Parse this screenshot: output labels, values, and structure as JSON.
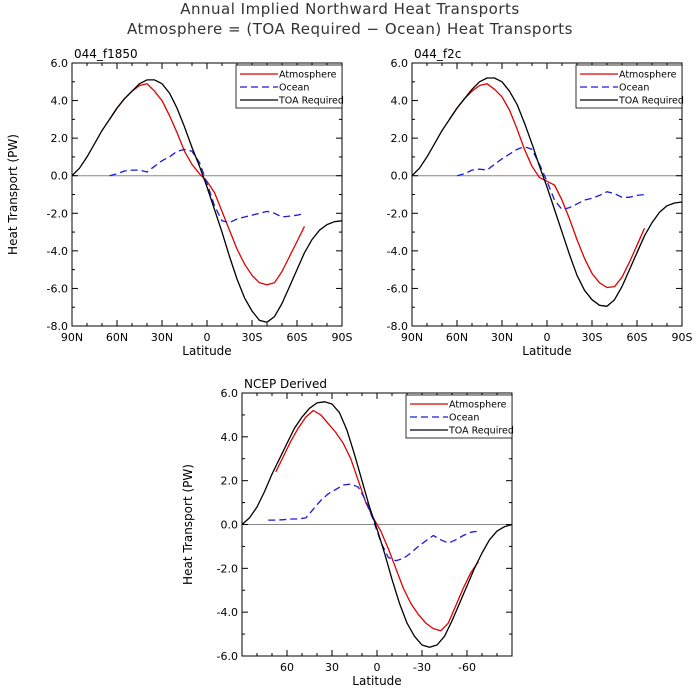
{
  "title": "Annual Implied Northward Heat Transports",
  "subtitle": "Atmosphere = (TOA Required − Ocean) Heat Transports",
  "chart_data": [
    {
      "type": "line",
      "title": "044_f1850",
      "xlabel": "Latitude",
      "ylabel": "Heat Transport (PW)",
      "xlim": [
        90,
        -90
      ],
      "ylim": [
        -8,
        6
      ],
      "xticks": [
        90,
        60,
        30,
        0,
        -30,
        -60,
        -90
      ],
      "xticklabels": [
        "90N",
        "60N",
        "30N",
        "0",
        "30S",
        "60S",
        "90S"
      ],
      "yticks": [
        -8,
        -6,
        -4,
        -2,
        0,
        2,
        4,
        6
      ],
      "yticklabels": [
        "-8.0",
        "-6.0",
        "-4.0",
        "-2.0",
        "0.0",
        "2.0",
        "4.0",
        "6.0"
      ],
      "legend_position": "top-right",
      "series": [
        {
          "name": "Atmosphere",
          "color": "#e00000",
          "dash": "solid",
          "x": [
            65,
            60,
            55,
            50,
            45,
            40,
            35,
            30,
            25,
            20,
            15,
            10,
            5,
            0,
            -5,
            -10,
            -15,
            -20,
            -25,
            -30,
            -35,
            -40,
            -45,
            -50,
            -55,
            -60,
            -65
          ],
          "y": [
            3.0,
            3.6,
            4.1,
            4.5,
            4.8,
            4.9,
            4.5,
            4.0,
            3.2,
            2.3,
            1.3,
            0.6,
            0.1,
            -0.3,
            -0.9,
            -1.9,
            -2.9,
            -3.9,
            -4.7,
            -5.3,
            -5.7,
            -5.8,
            -5.7,
            -5.1,
            -4.3,
            -3.5,
            -2.7
          ]
        },
        {
          "name": "Ocean",
          "color": "#1a1adc",
          "dash": "dashed",
          "x": [
            65,
            60,
            55,
            50,
            45,
            40,
            35,
            30,
            25,
            20,
            15,
            10,
            5,
            0,
            -5,
            -10,
            -15,
            -20,
            -25,
            -30,
            -35,
            -40,
            -45,
            -50,
            -55,
            -60,
            -65
          ],
          "y": [
            0.0,
            0.1,
            0.25,
            0.3,
            0.3,
            0.2,
            0.5,
            0.8,
            1.0,
            1.3,
            1.4,
            1.3,
            0.7,
            -0.4,
            -1.6,
            -2.4,
            -2.5,
            -2.3,
            -2.2,
            -2.1,
            -2.0,
            -1.9,
            -2.0,
            -2.2,
            -2.15,
            -2.1,
            -2.0
          ]
        },
        {
          "name": "TOA Required",
          "color": "#000000",
          "dash": "solid",
          "x": [
            90,
            85,
            80,
            75,
            70,
            65,
            60,
            55,
            50,
            45,
            40,
            35,
            30,
            25,
            20,
            15,
            10,
            5,
            0,
            -5,
            -10,
            -15,
            -20,
            -25,
            -30,
            -35,
            -40,
            -45,
            -50,
            -55,
            -60,
            -65,
            -70,
            -75,
            -80,
            -85,
            -90
          ],
          "y": [
            0.0,
            0.4,
            1.0,
            1.7,
            2.4,
            3.0,
            3.6,
            4.1,
            4.5,
            4.9,
            5.1,
            5.1,
            4.9,
            4.4,
            3.6,
            2.6,
            1.5,
            0.5,
            -0.6,
            -1.8,
            -3.0,
            -4.3,
            -5.5,
            -6.5,
            -7.2,
            -7.7,
            -7.8,
            -7.5,
            -6.8,
            -5.9,
            -5.0,
            -4.1,
            -3.4,
            -2.9,
            -2.6,
            -2.45,
            -2.4
          ]
        }
      ]
    },
    {
      "type": "line",
      "title": "044_f2c",
      "xlabel": "Latitude",
      "ylabel": "",
      "xlim": [
        90,
        -90
      ],
      "ylim": [
        -8,
        6
      ],
      "xticks": [
        90,
        60,
        30,
        0,
        -30,
        -60,
        -90
      ],
      "xticklabels": [
        "90N",
        "60N",
        "30N",
        "0",
        "30S",
        "60S",
        "90S"
      ],
      "yticks": [
        -8,
        -6,
        -4,
        -2,
        0,
        2,
        4,
        6
      ],
      "yticklabels": [
        "-8.0",
        "-6.0",
        "-4.0",
        "-2.0",
        "0.0",
        "2.0",
        "4.0",
        "6.0"
      ],
      "legend_position": "top-right",
      "series": [
        {
          "name": "Atmosphere",
          "color": "#e00000",
          "dash": "solid",
          "x": [
            65,
            60,
            55,
            50,
            45,
            40,
            35,
            30,
            25,
            20,
            15,
            10,
            5,
            0,
            -5,
            -10,
            -15,
            -20,
            -25,
            -30,
            -35,
            -40,
            -45,
            -50,
            -55,
            -60,
            -65
          ],
          "y": [
            3.0,
            3.6,
            4.1,
            4.5,
            4.8,
            4.9,
            4.6,
            4.2,
            3.5,
            2.5,
            1.4,
            0.5,
            -0.1,
            -0.3,
            -0.5,
            -1.3,
            -2.3,
            -3.4,
            -4.4,
            -5.2,
            -5.7,
            -5.95,
            -5.9,
            -5.4,
            -4.6,
            -3.7,
            -2.8
          ]
        },
        {
          "name": "Ocean",
          "color": "#1a1adc",
          "dash": "dashed",
          "x": [
            60,
            55,
            50,
            45,
            40,
            35,
            30,
            25,
            20,
            15,
            10,
            5,
            0,
            -5,
            -10,
            -15,
            -20,
            -25,
            -30,
            -35,
            -40,
            -45,
            -50,
            -55,
            -60,
            -65
          ],
          "y": [
            0.0,
            0.1,
            0.3,
            0.35,
            0.3,
            0.6,
            0.9,
            1.15,
            1.4,
            1.55,
            1.4,
            0.6,
            -0.3,
            -1.3,
            -1.8,
            -1.7,
            -1.5,
            -1.3,
            -1.2,
            -1.05,
            -0.85,
            -0.95,
            -1.15,
            -1.15,
            -1.05,
            -1.0
          ]
        },
        {
          "name": "TOA Required",
          "color": "#000000",
          "dash": "solid",
          "x": [
            90,
            85,
            80,
            75,
            70,
            65,
            60,
            55,
            50,
            45,
            40,
            35,
            30,
            25,
            20,
            15,
            10,
            5,
            0,
            -5,
            -10,
            -15,
            -20,
            -25,
            -30,
            -35,
            -40,
            -45,
            -50,
            -55,
            -60,
            -65,
            -70,
            -75,
            -80,
            -85,
            -90
          ],
          "y": [
            0.0,
            0.4,
            1.0,
            1.7,
            2.4,
            3.0,
            3.6,
            4.1,
            4.6,
            5.0,
            5.2,
            5.2,
            5.0,
            4.5,
            3.8,
            2.8,
            1.7,
            0.5,
            -0.6,
            -1.8,
            -3.0,
            -4.2,
            -5.3,
            -6.1,
            -6.6,
            -6.9,
            -6.95,
            -6.6,
            -5.9,
            -5.0,
            -4.1,
            -3.2,
            -2.5,
            -1.95,
            -1.6,
            -1.45,
            -1.4
          ]
        }
      ]
    },
    {
      "type": "line",
      "title": "NCEP Derived",
      "xlabel": "Latitude",
      "ylabel": "Heat Transport (PW)",
      "xlim": [
        90,
        -90
      ],
      "ylim": [
        -6,
        6
      ],
      "xticks": [
        60,
        30,
        0,
        -30,
        -60
      ],
      "xticklabels": [
        "60",
        "30",
        "0",
        "-30",
        "-60"
      ],
      "yticks": [
        -6,
        -4,
        -2,
        0,
        2,
        4,
        6
      ],
      "yticklabels": [
        "-6.0",
        "-4.0",
        "-2.0",
        "0.0",
        "2.0",
        "4.0",
        "6.0"
      ],
      "legend_position": "top-right",
      "series": [
        {
          "name": "Atmosphere",
          "color": "#e00000",
          "dash": "solid",
          "x": [
            67.5,
            62.5,
            57.5,
            52.5,
            47.5,
            42.5,
            37.5,
            32.5,
            27.5,
            22.5,
            17.5,
            12.5,
            7.5,
            2.5,
            -2.5,
            -7.5,
            -12.5,
            -17.5,
            -22.5,
            -27.5,
            -32.5,
            -37.5,
            -42.5,
            -47.5,
            -52.5,
            -57.5,
            -62.5,
            -67.5
          ],
          "y": [
            2.4,
            3.1,
            3.8,
            4.4,
            4.9,
            5.2,
            5.0,
            4.6,
            4.2,
            3.7,
            3.0,
            2.0,
            1.0,
            0.3,
            -0.3,
            -1.1,
            -2.0,
            -2.9,
            -3.6,
            -4.1,
            -4.5,
            -4.75,
            -4.85,
            -4.5,
            -3.7,
            -2.9,
            -2.2,
            -1.7
          ]
        },
        {
          "name": "Ocean",
          "color": "#1a1adc",
          "dash": "dashed",
          "x": [
            72.5,
            67.5,
            62.5,
            57.5,
            52.5,
            47.5,
            42.5,
            37.5,
            32.5,
            27.5,
            22.5,
            17.5,
            12.5,
            7.5,
            2.5,
            -2.5,
            -7.5,
            -12.5,
            -17.5,
            -22.5,
            -27.5,
            -32.5,
            -37.5,
            -42.5,
            -47.5,
            -52.5,
            -57.5,
            -62.5,
            -67.5
          ],
          "y": [
            0.2,
            0.2,
            0.22,
            0.25,
            0.25,
            0.3,
            0.7,
            1.1,
            1.4,
            1.6,
            1.8,
            1.85,
            1.7,
            1.1,
            0.2,
            -0.8,
            -1.5,
            -1.65,
            -1.55,
            -1.3,
            -1.0,
            -0.75,
            -0.5,
            -0.7,
            -0.85,
            -0.7,
            -0.5,
            -0.35,
            -0.3
          ]
        },
        {
          "name": "TOA Required",
          "color": "#000000",
          "dash": "solid",
          "x": [
            90,
            85,
            80,
            75,
            70,
            65,
            60,
            55,
            50,
            45,
            40,
            35,
            30,
            25,
            20,
            15,
            10,
            5,
            0,
            -5,
            -10,
            -15,
            -20,
            -25,
            -30,
            -35,
            -40,
            -45,
            -50,
            -55,
            -60,
            -65,
            -70,
            -75,
            -80,
            -85,
            -90
          ],
          "y": [
            0.0,
            0.3,
            0.8,
            1.5,
            2.3,
            3.0,
            3.7,
            4.4,
            4.9,
            5.3,
            5.55,
            5.6,
            5.5,
            5.1,
            4.3,
            3.2,
            2.0,
            0.8,
            -0.2,
            -1.3,
            -2.5,
            -3.6,
            -4.5,
            -5.1,
            -5.5,
            -5.6,
            -5.5,
            -5.1,
            -4.4,
            -3.6,
            -2.8,
            -2.0,
            -1.3,
            -0.7,
            -0.3,
            -0.1,
            0.0
          ]
        }
      ]
    }
  ]
}
